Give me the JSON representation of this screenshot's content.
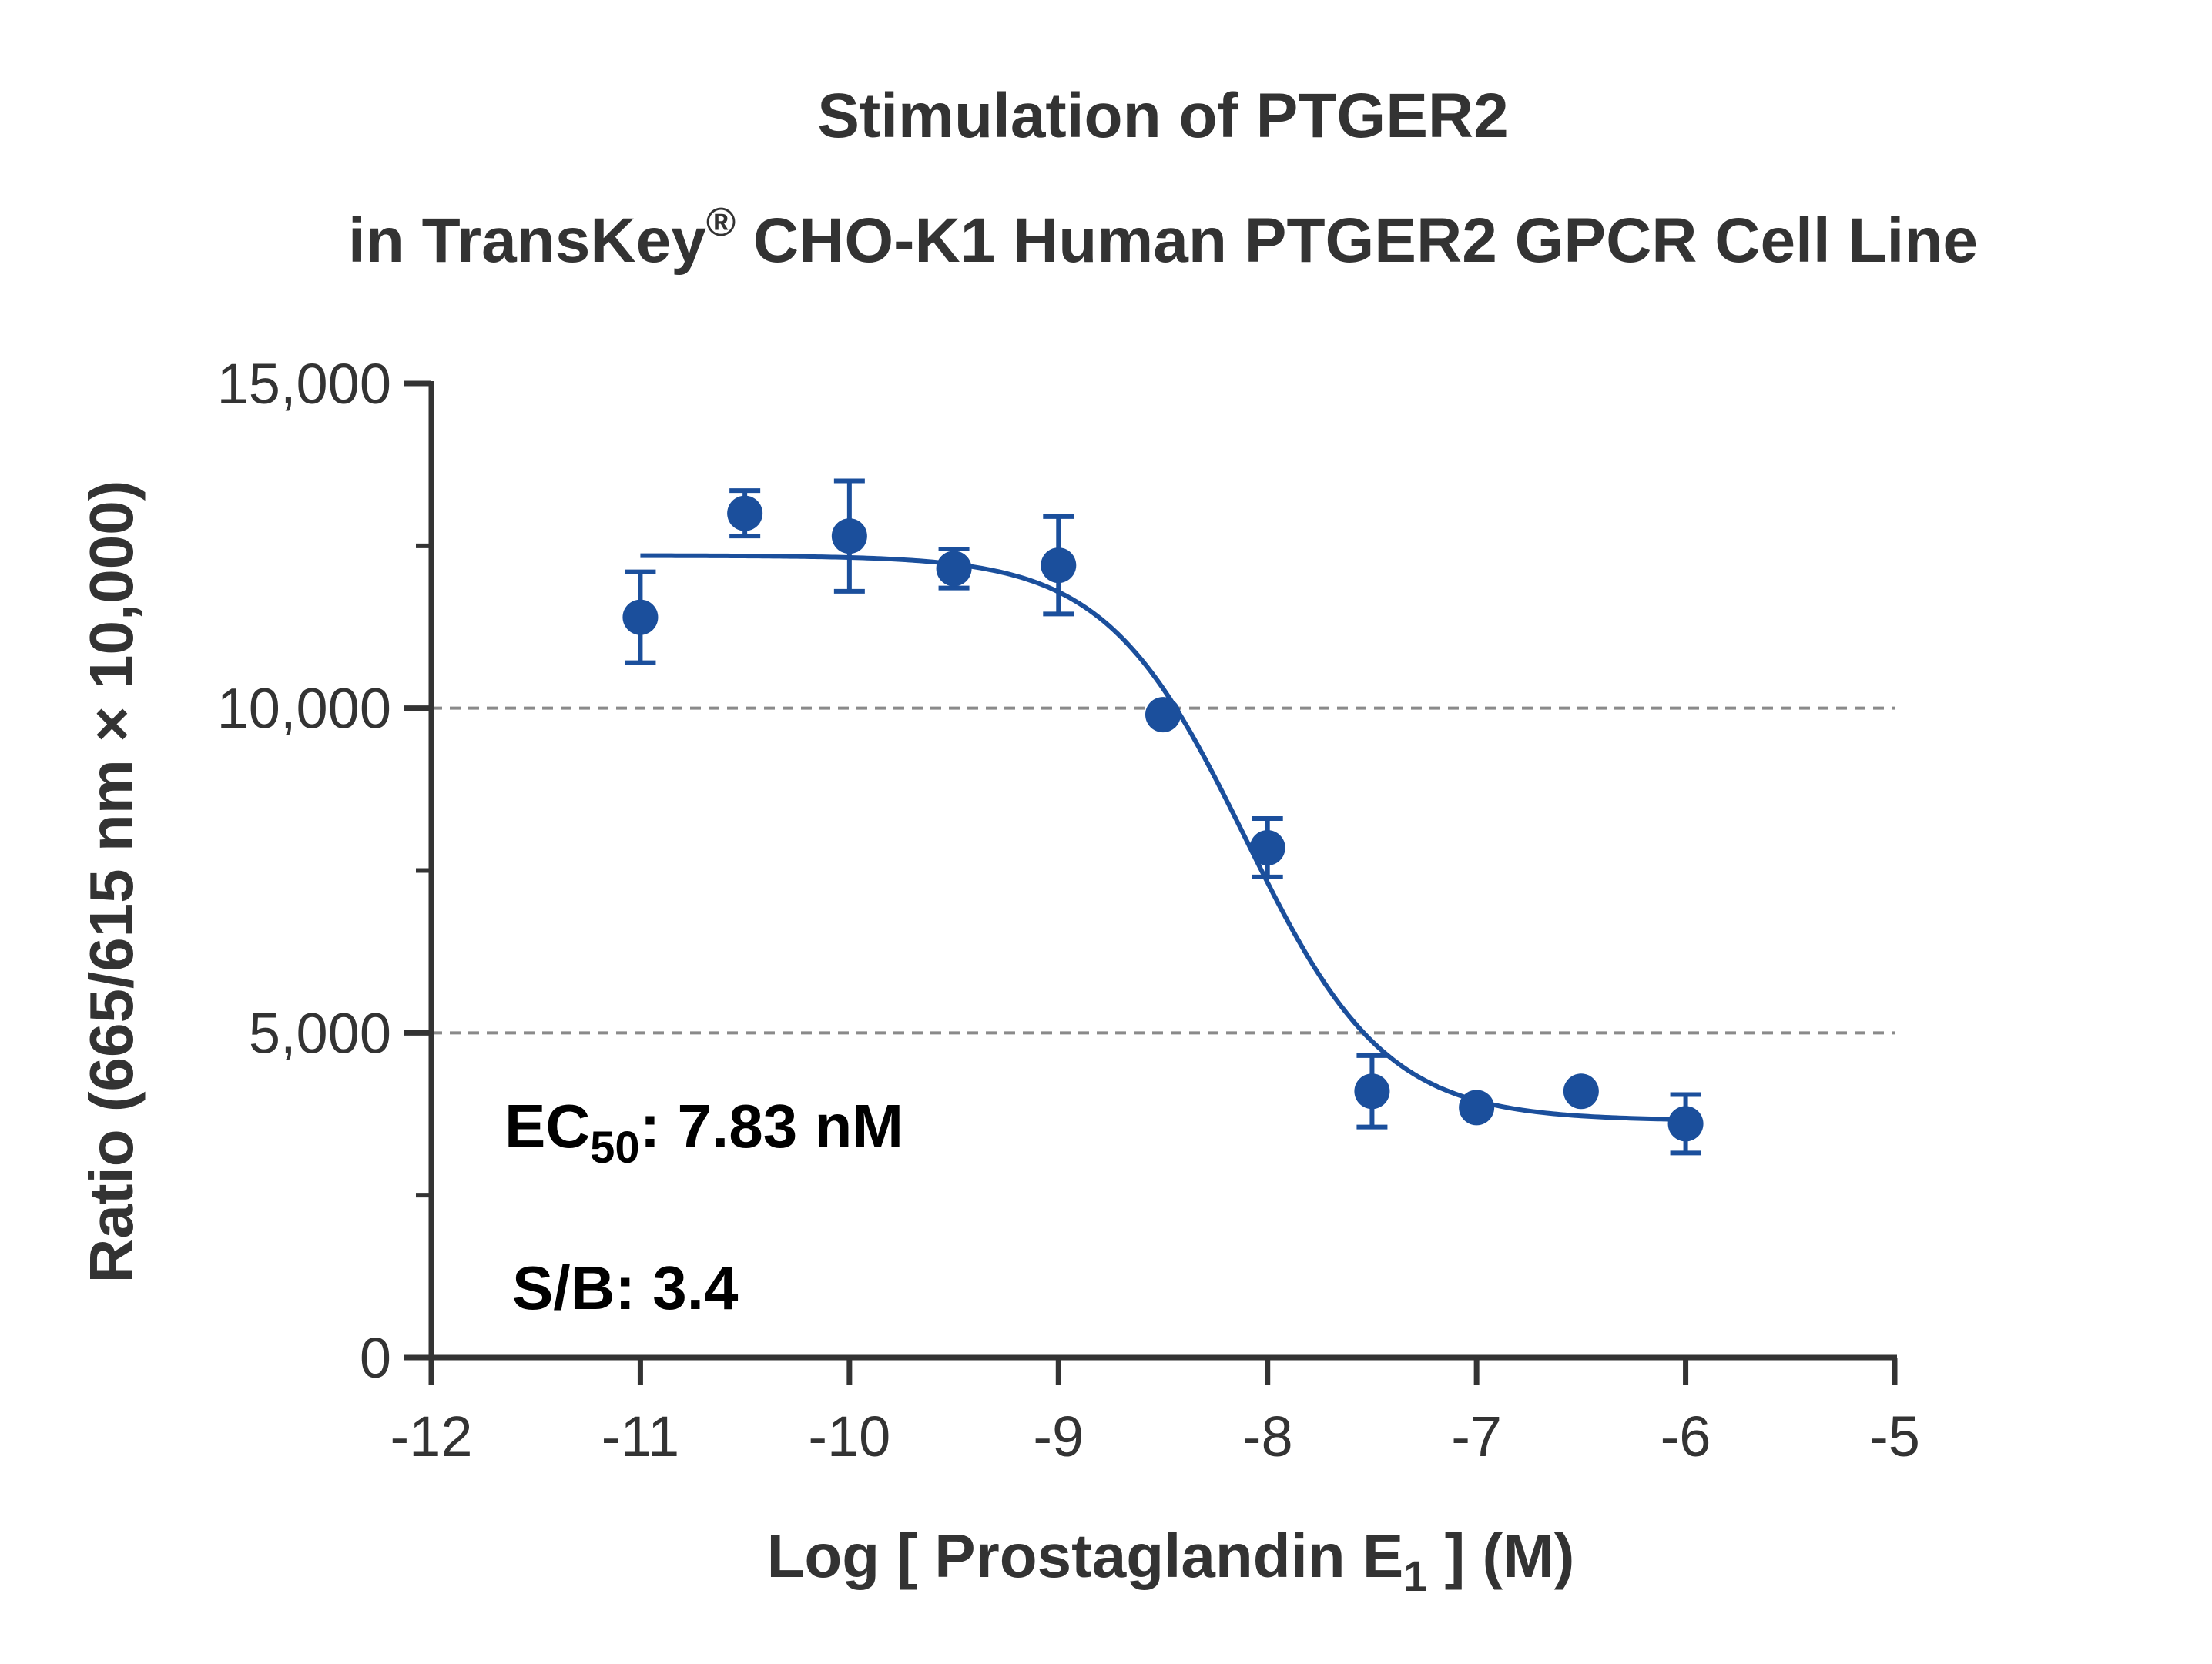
{
  "chart_data": {
    "type": "scatter",
    "title_line1": "Stimulation of  PTGER2",
    "title_line2_pre": "in TransKey",
    "title_line2_sup": "®",
    "title_line2_post": " CHO-K1 Human PTGER2 GPCR Cell Line",
    "xlabel_pre": "Log [ Prostaglandin E",
    "xlabel_sub": "1",
    "xlabel_post": " ]  (M)",
    "ylabel": "Ratio (665/615 nm × 10,000)",
    "xlim": [
      -12,
      -5
    ],
    "ylim": [
      0,
      15000
    ],
    "x_ticks": [
      -12,
      -11,
      -10,
      -9,
      -8,
      -7,
      -6,
      -5
    ],
    "x_tick_labels": [
      "-12",
      "-11",
      "-10",
      "-9",
      "-8",
      "-7",
      "-6",
      "-5"
    ],
    "y_ticks": [
      0,
      5000,
      10000,
      15000
    ],
    "y_tick_labels": [
      "0",
      "5,000",
      "10,000",
      "15,000"
    ],
    "y_minor_ticks": [
      2500,
      7500,
      12500
    ],
    "gridlines_y": [
      5000,
      10000
    ],
    "grid_style": "dashed",
    "series": [
      {
        "color": "#1b4f9c",
        "points": [
          {
            "x": -11.0,
            "y": 11400,
            "err": 700
          },
          {
            "x": -10.5,
            "y": 13000,
            "err": 350
          },
          {
            "x": -10.0,
            "y": 12650,
            "err": 850
          },
          {
            "x": -9.5,
            "y": 12150,
            "err": 300
          },
          {
            "x": -9.0,
            "y": 12200,
            "err": 750
          },
          {
            "x": -8.5,
            "y": 9900,
            "err": 0
          },
          {
            "x": -8.0,
            "y": 7850,
            "err": 450
          },
          {
            "x": -7.5,
            "y": 4100,
            "err": 550
          },
          {
            "x": -7.0,
            "y": 3850,
            "err": 0
          },
          {
            "x": -6.5,
            "y": 4100,
            "err": 0
          },
          {
            "x": -6.0,
            "y": 3600,
            "err": 450
          }
        ],
        "fit": {
          "model": "four-parameter logistic",
          "top": 12350,
          "bottom": 3650,
          "log_ec50": -8.106,
          "hill_slope": -1.3,
          "x_range": [
            -11,
            -6
          ]
        }
      }
    ],
    "annotations": {
      "ec50_pre": "EC",
      "ec50_sub": "50",
      "ec50_post": ": 7.83 nM",
      "sb": "S/B: 3.4"
    }
  }
}
